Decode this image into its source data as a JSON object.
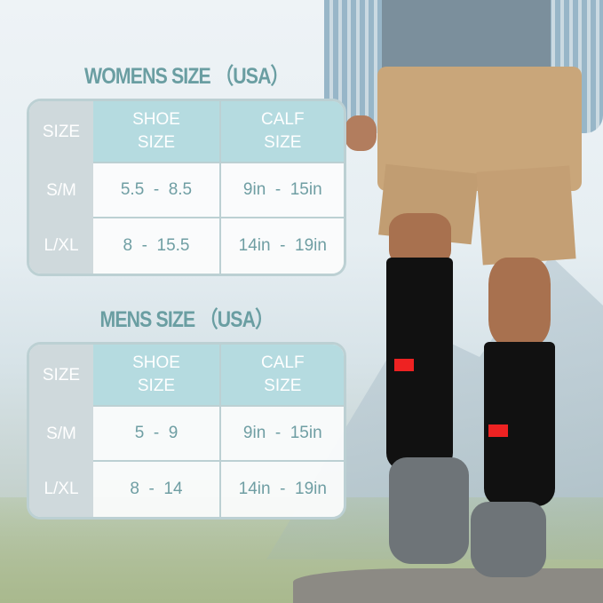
{
  "womens": {
    "title": "WOMENS SIZE （USA）",
    "headers": [
      "SIZE",
      "SHOE SIZE",
      "CALF SIZE"
    ],
    "rows": [
      {
        "size": "S/M",
        "shoe": "5.5  -  8.5",
        "calf": "9in  -  15in"
      },
      {
        "size": "L/XL",
        "shoe": "8  -  15.5",
        "calf": "14in  -  19in"
      }
    ]
  },
  "mens": {
    "title": "MENS SIZE （USA）",
    "headers": [
      "SIZE",
      "SHOE SIZE",
      "CALF SIZE"
    ],
    "rows": [
      {
        "size": "S/M",
        "shoe": "5  -  9",
        "calf": "9in  -  15in"
      },
      {
        "size": "L/XL",
        "shoe": "8  -  14",
        "calf": "14in  -  19in"
      }
    ]
  },
  "colors": {
    "accent": "#6a9ea2",
    "header": "#b5dbe0",
    "size_col": "#cfd9dc",
    "sock": "#111111"
  }
}
